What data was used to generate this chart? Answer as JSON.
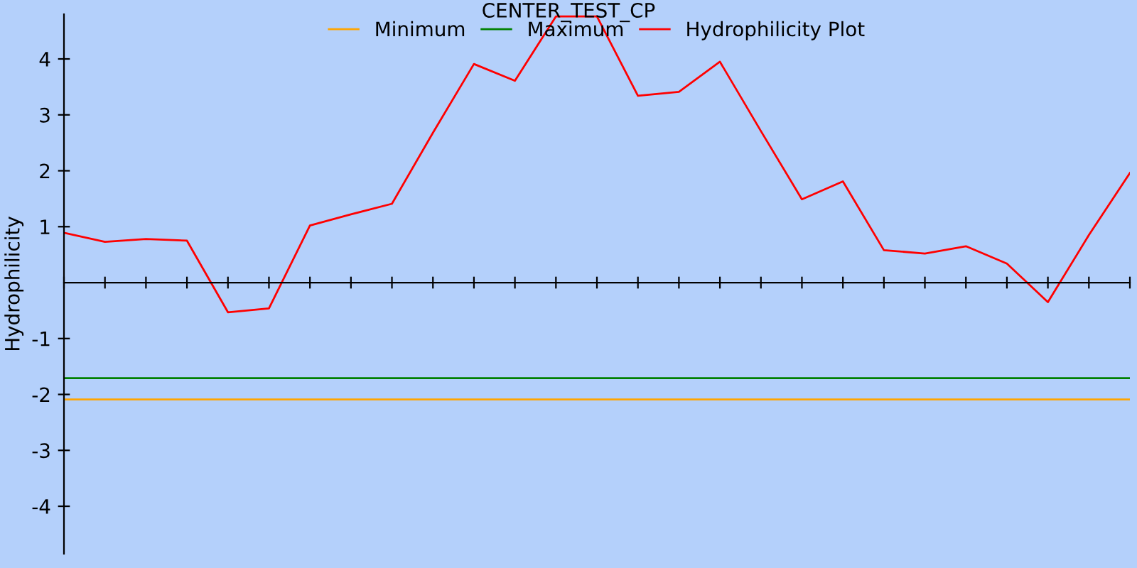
{
  "chart_data": {
    "type": "line",
    "title": "CENTER_TEST_CP",
    "ylabel": "Hydrophilicity",
    "categories": [
      null,
      null,
      null,
      null,
      null,
      null,
      null,
      null,
      null,
      null,
      null,
      null,
      null,
      null,
      null,
      null,
      null,
      null,
      null,
      null,
      null,
      null,
      null,
      null,
      null,
      null,
      null
    ],
    "series": [
      {
        "name": "Minimum",
        "color": "#ffa500",
        "values": [
          -2.09,
          -2.09,
          -2.09,
          -2.09,
          -2.09,
          -2.09,
          -2.09,
          -2.09,
          -2.09,
          -2.09,
          -2.09,
          -2.09,
          -2.09,
          -2.09,
          -2.09,
          -2.09,
          -2.09,
          -2.09,
          -2.09,
          -2.09,
          -2.09,
          -2.09,
          -2.09,
          -2.09,
          -2.09,
          -2.09,
          -2.09
        ]
      },
      {
        "name": "Maximum",
        "color": "#008000",
        "values": [
          -1.71,
          -1.71,
          -1.71,
          -1.71,
          -1.71,
          -1.71,
          -1.71,
          -1.71,
          -1.71,
          -1.71,
          -1.71,
          -1.71,
          -1.71,
          -1.71,
          -1.71,
          -1.71,
          -1.71,
          -1.71,
          -1.71,
          -1.71,
          -1.71,
          -1.71,
          -1.71,
          -1.71,
          -1.71,
          -1.71,
          -1.71
        ]
      },
      {
        "name": "Hydrophilicity Plot",
        "color": "#ff0000",
        "values": [
          0.89,
          0.73,
          0.78,
          0.75,
          -0.53,
          -0.46,
          1.02,
          1.22,
          1.41,
          2.68,
          3.91,
          3.61,
          4.76,
          4.76,
          3.34,
          3.41,
          3.95,
          2.71,
          1.49,
          1.81,
          0.58,
          0.52,
          0.65,
          0.34,
          -0.35,
          0.85,
          1.96
        ]
      }
    ],
    "ylim": [
      -4.85,
      4.8
    ],
    "yticks": [
      -4,
      -3,
      -2,
      -1,
      1,
      2,
      3,
      4
    ],
    "grid": false,
    "legend": "top"
  }
}
